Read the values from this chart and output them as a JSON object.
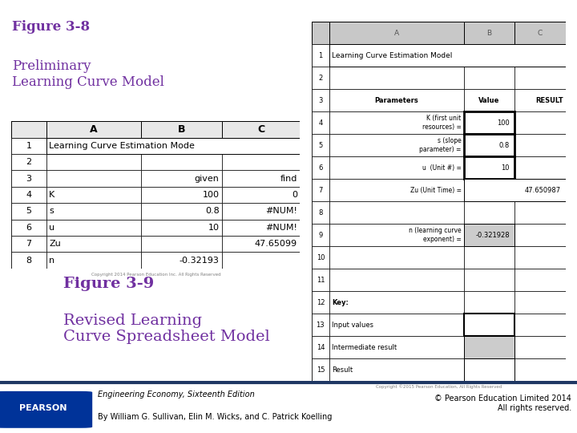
{
  "title1_bold": "Figure 3-8",
  "title1_normal": " Preliminary\nLearning Curve Model",
  "title2_bold": "Figure 3-9",
  "title2_normal": " Revised Learning\nCurve Spreadsheet Model",
  "purple_color": "#7030A0",
  "footer_text1": "Engineering Economy, Sixteenth Edition",
  "footer_text2": "By William G. Sullivan, Elin M. Wicks, and C. Patrick Koelling",
  "footer_right": "© Pearson Education Limited 2014\nAll rights reserved.",
  "left_table": {
    "headers": [
      "",
      "A",
      "B",
      "C"
    ],
    "rows": [
      [
        "1",
        "Learning Curve Estimation Mode",
        "",
        ""
      ],
      [
        "2",
        "",
        "",
        ""
      ],
      [
        "3",
        "",
        "given",
        "find"
      ],
      [
        "4",
        "K",
        "100",
        "0"
      ],
      [
        "5",
        "s",
        "0.8",
        "#NUM!"
      ],
      [
        "6",
        "u",
        "10",
        "#NUM!"
      ],
      [
        "7",
        "Zu",
        "",
        "47.65099"
      ],
      [
        "8",
        "n",
        "-0.32193",
        ""
      ]
    ]
  },
  "right_table": {
    "headers": [
      "",
      "A",
      "B",
      "C"
    ],
    "rows": [
      [
        "1",
        "Learning Curve Estimation Model",
        "",
        ""
      ],
      [
        "2",
        "",
        "",
        ""
      ],
      [
        "3",
        "Parameters",
        "Value",
        "RESULT"
      ],
      [
        "4",
        "K (first unit\nresources) =",
        "100",
        ""
      ],
      [
        "5",
        "s (slope\nparameter) =",
        "0.8",
        ""
      ],
      [
        "6",
        "u  (Unit #) =",
        "10",
        ""
      ],
      [
        "7",
        "Zu (Unit Time) =",
        "",
        "47.650987"
      ],
      [
        "8",
        "",
        "",
        ""
      ],
      [
        "9",
        "n (learning curve\nexponent) =",
        "-0.321928",
        ""
      ],
      [
        "10",
        "",
        "",
        ""
      ],
      [
        "11",
        "",
        "",
        ""
      ],
      [
        "12",
        "Key:",
        "",
        ""
      ],
      [
        "13",
        "Input values",
        "",
        ""
      ],
      [
        "14",
        "Intermediate result",
        "",
        ""
      ],
      [
        "15",
        "Result",
        "",
        ""
      ]
    ]
  },
  "copyright_left": "Copyright 2014 Pearson Education Inc. All Rights Reserved",
  "copyright_right": "Copyright ©2015 Pearson Education, All Rights Reserved"
}
